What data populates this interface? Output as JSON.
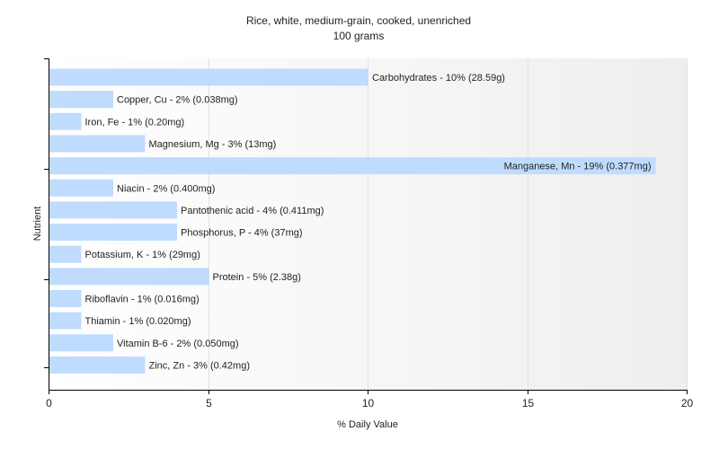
{
  "chart_data": {
    "type": "bar",
    "orientation": "horizontal",
    "title": "Rice, white, medium-grain, cooked, unenriched",
    "subtitle": "100 grams",
    "xlabel": "% Daily Value",
    "ylabel": "Nutrient",
    "xlim": [
      0,
      20
    ],
    "xticks": [
      0,
      5,
      10,
      15,
      20
    ],
    "grid": true,
    "bar_color": "#bfdcff",
    "categories": [
      "Carbohydrates",
      "Copper, Cu",
      "Iron, Fe",
      "Magnesium, Mg",
      "Manganese, Mn",
      "Niacin",
      "Pantothenic acid",
      "Phosphorus, P",
      "Potassium, K",
      "Protein",
      "Riboflavin",
      "Thiamin",
      "Vitamin B-6",
      "Zinc, Zn"
    ],
    "values": [
      10,
      2,
      1,
      3,
      19,
      2,
      4,
      4,
      1,
      5,
      1,
      1,
      2,
      3
    ],
    "labels": [
      "Carbohydrates - 10% (28.59g)",
      "Copper, Cu - 2% (0.038mg)",
      "Iron, Fe - 1% (0.20mg)",
      "Magnesium, Mg - 3% (13mg)",
      "Manganese, Mn - 19% (0.377mg)",
      "Niacin - 2% (0.400mg)",
      "Pantothenic acid - 4% (0.411mg)",
      "Phosphorus, P - 4% (37mg)",
      "Potassium, K - 1% (29mg)",
      "Protein - 5% (2.38g)",
      "Riboflavin - 1% (0.016mg)",
      "Thiamin - 1% (0.020mg)",
      "Vitamin B-6 - 2% (0.050mg)",
      "Zinc, Zn - 3% (0.42mg)"
    ]
  }
}
